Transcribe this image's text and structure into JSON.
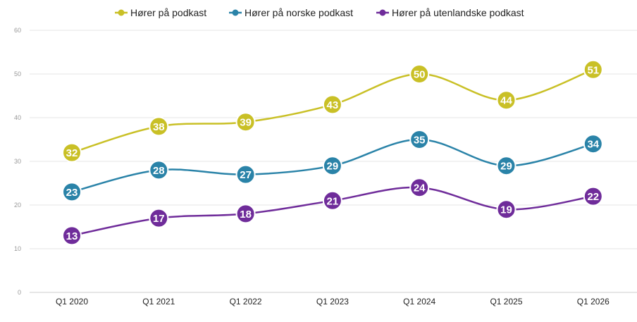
{
  "chart_data": {
    "type": "line",
    "categories": [
      "Q1 2020",
      "Q1 2021",
      "Q1 2022",
      "Q1 2023",
      "Q1 2024",
      "Q1 2025",
      "Q1 2026"
    ],
    "series": [
      {
        "name": "Hører på podkast",
        "color": "#c9c026",
        "values": [
          32,
          38,
          39,
          43,
          50,
          44,
          51
        ]
      },
      {
        "name": "Hører på norske podkast",
        "color": "#2a83a8",
        "values": [
          23,
          28,
          27,
          29,
          35,
          29,
          34
        ]
      },
      {
        "name": "Hører på utenlandske podkast",
        "color": "#6f2c9a",
        "values": [
          13,
          17,
          18,
          21,
          24,
          19,
          22
        ]
      }
    ],
    "data_labels": [
      [
        "32",
        "38",
        "39",
        "43",
        "50",
        "44",
        "51"
      ],
      [
        "23",
        "28",
        "27",
        "29",
        "35",
        "29",
        "34"
      ],
      [
        "13",
        "17",
        "18",
        "21",
        "24",
        "19",
        "22"
      ]
    ],
    "yticks": [
      0,
      10,
      20,
      30,
      40,
      50,
      60
    ],
    "ylim": [
      0,
      60
    ],
    "grid": true,
    "legend_position": "top",
    "smooth": true
  }
}
